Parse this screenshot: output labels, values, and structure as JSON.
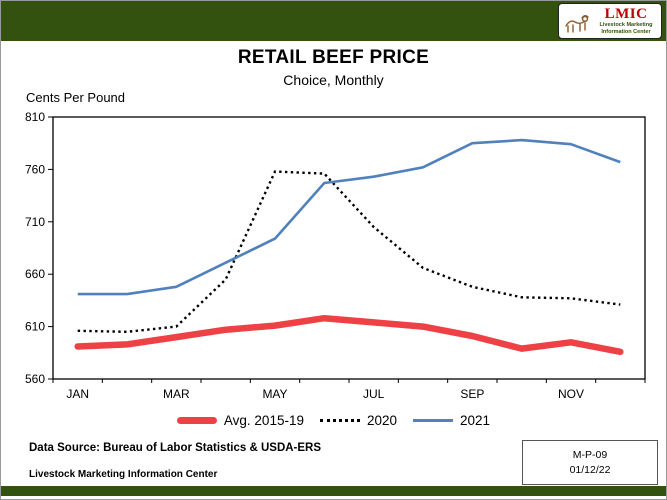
{
  "header": {
    "logo": {
      "brand": "LMIC",
      "org_line1": "Livestock Marketing",
      "org_line2": "Information Center"
    }
  },
  "title": "RETAIL BEEF PRICE",
  "subtitle": "Choice, Monthly",
  "y_units_label": "Cents Per Pound",
  "chart_data": {
    "type": "line",
    "categories": [
      "JAN",
      "FEB",
      "MAR",
      "APR",
      "MAY",
      "JUN",
      "JUL",
      "AUG",
      "SEP",
      "OCT",
      "NOV",
      "DEC"
    ],
    "x_labels_shown": [
      "JAN",
      "MAR",
      "MAY",
      "JUL",
      "SEP",
      "NOV"
    ],
    "ylim": [
      560,
      810
    ],
    "y_ticks": [
      560,
      610,
      660,
      710,
      760,
      810
    ],
    "grid": false,
    "legend_position": "bottom",
    "series": [
      {
        "name": "Avg. 2015-19",
        "color": "#ee4145",
        "style": "solid-thick",
        "values": [
          591,
          593,
          600,
          607,
          611,
          618,
          614,
          610,
          601,
          589,
          595,
          586
        ]
      },
      {
        "name": "2020",
        "color": "#000000",
        "style": "dotted",
        "values": [
          606,
          605,
          610,
          655,
          758,
          756,
          705,
          666,
          648,
          638,
          637,
          631
        ]
      },
      {
        "name": "2021",
        "color": "#4f81bd",
        "style": "solid",
        "values": [
          641,
          641,
          648,
          671,
          694,
          747,
          753,
          762,
          785,
          788,
          784,
          767
        ]
      }
    ]
  },
  "footer": {
    "source_line": "Data Source: Bureau of Labor Statistics & USDA-ERS",
    "org_line": "Livestock Marketing Information Center",
    "doc_id": "M-P-09",
    "doc_date": "01/12/22"
  }
}
